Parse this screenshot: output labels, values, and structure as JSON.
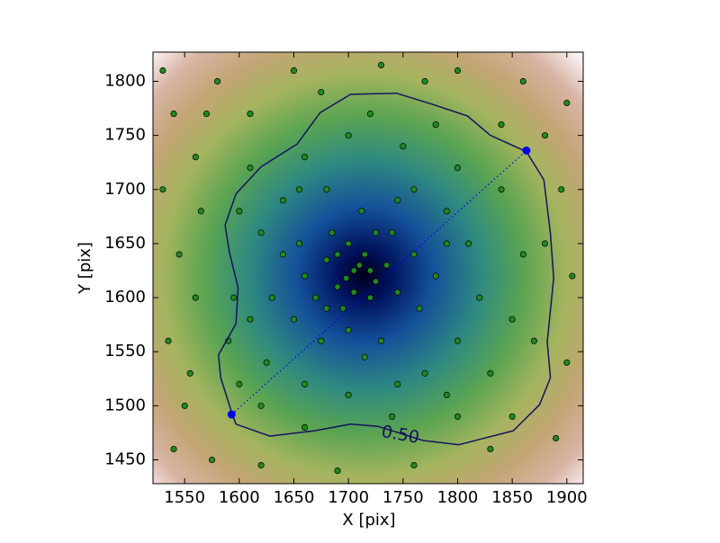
{
  "chart_data": {
    "type": "scatter",
    "xlabel": "X [pix]",
    "ylabel": "Y [pix]",
    "xlim": [
      1521,
      1915
    ],
    "ylim": [
      1428,
      1827
    ],
    "xticks": [
      1550,
      1600,
      1650,
      1700,
      1750,
      1800,
      1850,
      1900
    ],
    "yticks": [
      1450,
      1500,
      1550,
      1600,
      1650,
      1700,
      1750,
      1800
    ],
    "points": {
      "color": "#1f8a1f",
      "x": [
        1705,
        1710,
        1698,
        1715,
        1690,
        1725,
        1680,
        1700,
        1735,
        1670,
        1695,
        1720,
        1745,
        1660,
        1685,
        1740,
        1712,
        1655,
        1760,
        1700,
        1730,
        1675,
        1650,
        1765,
        1780,
        1640,
        1630,
        1790,
        1800,
        1820,
        1810,
        1760,
        1680,
        1640,
        1620,
        1610,
        1625,
        1660,
        1700,
        1745,
        1790,
        1830,
        1850,
        1860,
        1840,
        1800,
        1750,
        1700,
        1660,
        1720,
        1780,
        1620,
        1660,
        1740,
        1800,
        1850,
        1600,
        1595,
        1600,
        1610,
        1560,
        1540,
        1530,
        1545,
        1535,
        1550,
        1540,
        1575,
        1620,
        1690,
        1760,
        1830,
        1890,
        1900,
        1905,
        1895,
        1900,
        1860,
        1800,
        1730,
        1650,
        1580,
        1530,
        1570,
        1880,
        1870,
        1560,
        1555,
        1880,
        1675,
        1770,
        1715,
        1655,
        1745,
        1790,
        1680,
        1725,
        1705,
        1690,
        1720,
        1565,
        1590,
        1840,
        1610,
        1770
      ],
      "y": [
        1625,
        1630,
        1618,
        1640,
        1610,
        1615,
        1635,
        1650,
        1630,
        1600,
        1590,
        1600,
        1605,
        1620,
        1660,
        1660,
        1680,
        1650,
        1640,
        1570,
        1560,
        1560,
        1580,
        1590,
        1620,
        1640,
        1600,
        1680,
        1560,
        1600,
        1650,
        1700,
        1700,
        1690,
        1660,
        1580,
        1540,
        1520,
        1510,
        1520,
        1510,
        1530,
        1580,
        1640,
        1700,
        1720,
        1740,
        1750,
        1730,
        1770,
        1760,
        1500,
        1480,
        1490,
        1490,
        1490,
        1520,
        1600,
        1680,
        1720,
        1730,
        1770,
        1700,
        1640,
        1560,
        1500,
        1460,
        1450,
        1445,
        1440,
        1445,
        1460,
        1470,
        1540,
        1620,
        1700,
        1780,
        1800,
        1810,
        1815,
        1810,
        1800,
        1810,
        1770,
        1750,
        1560,
        1600,
        1530,
        1650,
        1790,
        1530,
        1545,
        1700,
        1690,
        1650,
        1590,
        1660,
        1605,
        1640,
        1625,
        1680,
        1560,
        1760,
        1770,
        1800
      ]
    },
    "contour": {
      "label": "0.50",
      "color": "#14145e",
      "x": [
        1594,
        1583,
        1581,
        1597,
        1599,
        1591,
        1587,
        1597,
        1620,
        1653,
        1674,
        1702,
        1744,
        1776,
        1809,
        1830,
        1863,
        1879,
        1885,
        1888,
        1882,
        1885,
        1875,
        1851,
        1801,
        1768,
        1727,
        1702,
        1669,
        1628,
        1597,
        1594
      ],
      "y": [
        1491,
        1526,
        1547,
        1576,
        1609,
        1642,
        1667,
        1696,
        1721,
        1742,
        1771,
        1788,
        1789,
        1779,
        1768,
        1750,
        1735,
        1709,
        1659,
        1618,
        1559,
        1526,
        1501,
        1477,
        1464,
        1468,
        1481,
        1483,
        1477,
        1472,
        1483,
        1491
      ]
    },
    "segment": {
      "color": "#0000ee",
      "x": [
        1593,
        1863
      ],
      "y": [
        1492,
        1736
      ]
    }
  }
}
